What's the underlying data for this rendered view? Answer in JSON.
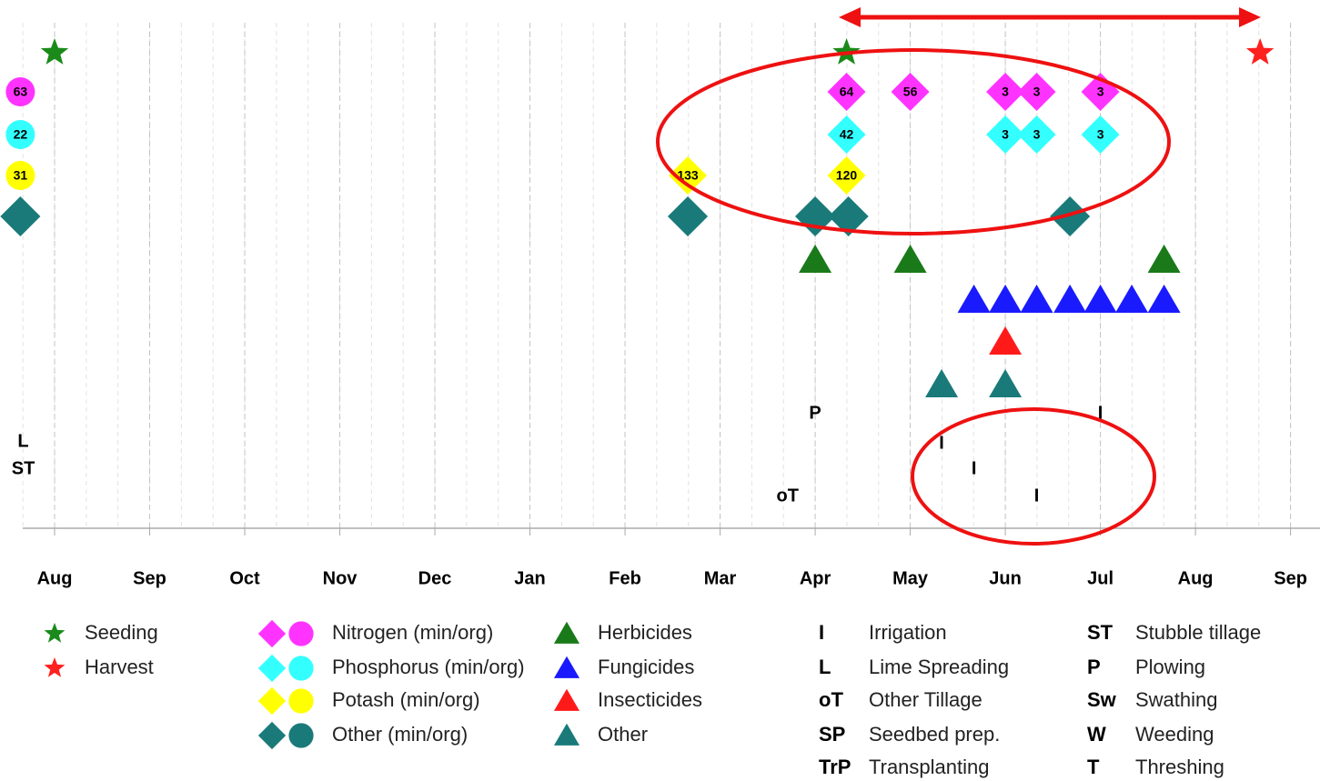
{
  "chart_data": {
    "type": "timeline",
    "xlim": [
      -0.335,
      13.31
    ],
    "xticks": [
      {
        "value": 0,
        "label": "Aug"
      },
      {
        "value": 1,
        "label": "Sep"
      },
      {
        "value": 2,
        "label": "Oct"
      },
      {
        "value": 3,
        "label": "Nov"
      },
      {
        "value": 4,
        "label": "Dec"
      },
      {
        "value": 5,
        "label": "Jan"
      },
      {
        "value": 6,
        "label": "Feb"
      },
      {
        "value": 7,
        "label": "Mar"
      },
      {
        "value": 8,
        "label": "Apr"
      },
      {
        "value": 9,
        "label": "May"
      },
      {
        "value": 10,
        "label": "Jun"
      },
      {
        "value": 11,
        "label": "Jul"
      },
      {
        "value": 12,
        "label": "Aug"
      },
      {
        "value": 13,
        "label": "Sep"
      }
    ],
    "grid": true,
    "series": [
      {
        "name": "Seeding",
        "shape": "star",
        "color": "#1a8a1a",
        "x": [
          0,
          8.33
        ]
      },
      {
        "name": "Harvest",
        "shape": "star",
        "color": "#ff2020",
        "x": [
          12.68
        ]
      },
      {
        "name": "Nitrogen (min/org)",
        "color": "#ff33ff",
        "x": [
          -0.36,
          8.33,
          9.0,
          10.0,
          10.33,
          11.0
        ],
        "values": [
          63,
          64,
          56,
          3,
          3,
          3
        ],
        "shapes": [
          "circle",
          "diamond",
          "diamond",
          "diamond",
          "diamond",
          "diamond"
        ]
      },
      {
        "name": "Phosphorus (min/org)",
        "color": "#33ffff",
        "x": [
          -0.36,
          8.33,
          10.0,
          10.33,
          11.0
        ],
        "values": [
          22,
          42,
          3,
          3,
          3
        ],
        "shapes": [
          "circle",
          "diamond",
          "diamond",
          "diamond",
          "diamond"
        ]
      },
      {
        "name": "Potash (min/org)",
        "color": "#ffff00",
        "x": [
          -0.36,
          6.66,
          8.33
        ],
        "values": [
          31,
          133,
          120
        ],
        "shapes": [
          "circle",
          "diamond",
          "diamond"
        ]
      },
      {
        "name": "Other (min/org)",
        "color": "#1a7a7a",
        "x": [
          -0.36,
          6.66,
          8.0,
          8.35,
          10.68
        ],
        "shapes": [
          "diamond",
          "diamond",
          "diamond",
          "diamond",
          "diamond"
        ]
      },
      {
        "name": "Herbicides",
        "shape": "triangle",
        "color": "#1a7a1a",
        "x": [
          8.0,
          9.0,
          11.67
        ]
      },
      {
        "name": "Fungicides",
        "shape": "triangle",
        "color": "#1a1aff",
        "x": [
          9.67,
          10.0,
          10.33,
          10.68,
          11.0,
          11.33,
          11.67
        ]
      },
      {
        "name": "Insecticides",
        "shape": "triangle",
        "color": "#ff1a1a",
        "x": [
          10.0
        ]
      },
      {
        "name": "Other",
        "shape": "triangle",
        "color": "#1a7a7a",
        "x": [
          9.33,
          10.0
        ]
      },
      {
        "name": "Irrigation",
        "code": "I",
        "x": [
          11.0,
          9.33,
          9.67,
          10.33
        ]
      },
      {
        "name": "Lime Spreading",
        "code": "L",
        "x": [
          -0.33
        ]
      },
      {
        "name": "Other Tillage",
        "code": "oT",
        "x": [
          7.71
        ]
      },
      {
        "name": "Seedbed prep.",
        "code": "SP",
        "x": []
      },
      {
        "name": "Transplanting",
        "code": "TrP",
        "x": []
      },
      {
        "name": "Stubble tillage",
        "code": "ST",
        "x": [
          -0.33
        ]
      },
      {
        "name": "Plowing",
        "code": "P",
        "x": [
          8.0
        ]
      },
      {
        "name": "Swathing",
        "code": "Sw",
        "x": []
      },
      {
        "name": "Weeding",
        "code": "W",
        "x": []
      },
      {
        "name": "Threshing",
        "code": "T",
        "x": []
      }
    ]
  }
}
